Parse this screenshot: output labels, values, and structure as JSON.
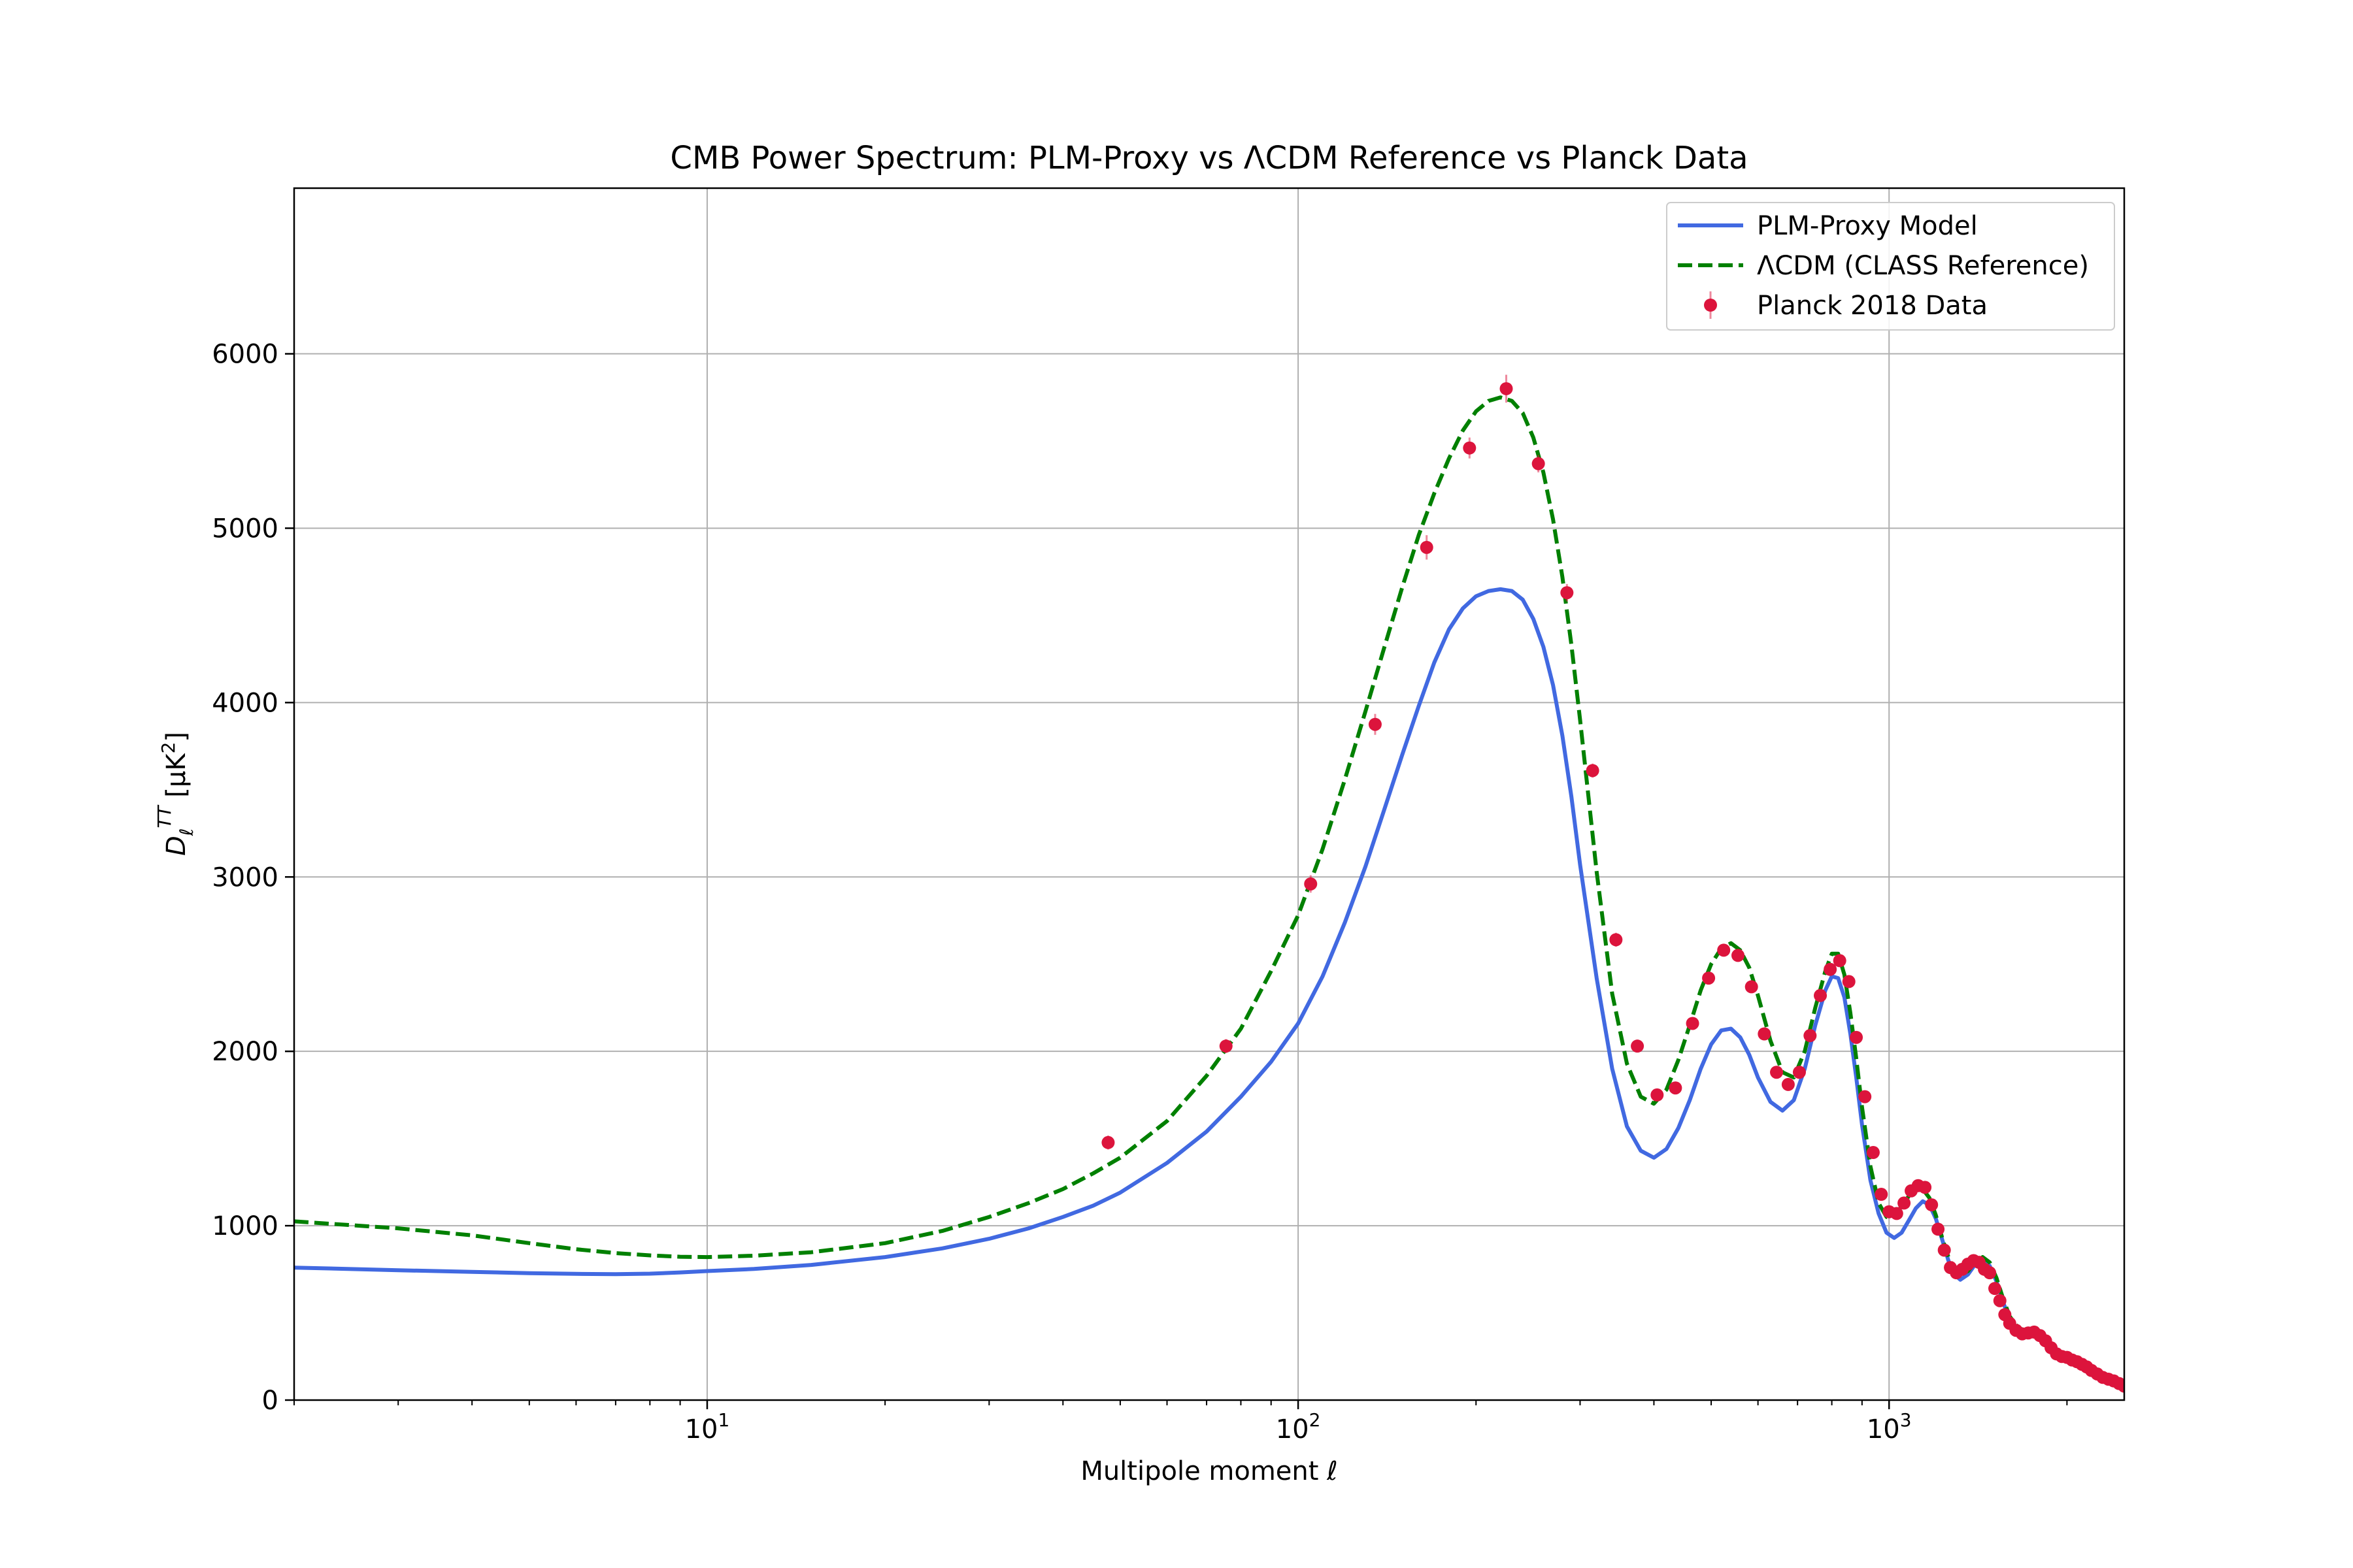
{
  "chart_data": {
    "type": "line",
    "title": "CMB Power Spectrum: PLM-Proxy vs ΛCDM Reference vs Planck Data",
    "xlabel": "Multipole moment ℓ",
    "ylabel": {
      "base": "D",
      "sub": "ℓ",
      "sup": "TT",
      "unit_pre": " [μK",
      "unit_sup": "2",
      "unit_post": "]"
    },
    "xscale": "log",
    "xlim": [
      2,
      2500
    ],
    "ylim": [
      0,
      6950
    ],
    "grid": true,
    "legend_position": "top-right",
    "x_ticks": [
      {
        "value": 10,
        "base": "10",
        "exp": "1"
      },
      {
        "value": 100,
        "base": "10",
        "exp": "2"
      },
      {
        "value": 1000,
        "base": "10",
        "exp": "3"
      }
    ],
    "y_ticks": [
      {
        "value": 0,
        "label": "0"
      },
      {
        "value": 1000,
        "label": "1000"
      },
      {
        "value": 2000,
        "label": "2000"
      },
      {
        "value": 3000,
        "label": "3000"
      },
      {
        "value": 4000,
        "label": "4000"
      },
      {
        "value": 5000,
        "label": "5000"
      },
      {
        "value": 6000,
        "label": "6000"
      }
    ],
    "series": [
      {
        "name": "PLM-Proxy Model",
        "kind": "line",
        "color": "#4169e1",
        "style": "solid",
        "points": [
          [
            2,
            760
          ],
          [
            3,
            745
          ],
          [
            4,
            735
          ],
          [
            5,
            728
          ],
          [
            6,
            724
          ],
          [
            7,
            722
          ],
          [
            8,
            725
          ],
          [
            9,
            732
          ],
          [
            10,
            740
          ],
          [
            12,
            752
          ],
          [
            15,
            775
          ],
          [
            20,
            820
          ],
          [
            25,
            870
          ],
          [
            30,
            925
          ],
          [
            35,
            985
          ],
          [
            40,
            1050
          ],
          [
            45,
            1115
          ],
          [
            50,
            1190
          ],
          [
            60,
            1360
          ],
          [
            70,
            1540
          ],
          [
            80,
            1740
          ],
          [
            90,
            1940
          ],
          [
            100,
            2160
          ],
          [
            110,
            2430
          ],
          [
            120,
            2740
          ],
          [
            130,
            3060
          ],
          [
            140,
            3390
          ],
          [
            150,
            3700
          ],
          [
            160,
            3980
          ],
          [
            170,
            4230
          ],
          [
            180,
            4420
          ],
          [
            190,
            4540
          ],
          [
            200,
            4610
          ],
          [
            210,
            4640
          ],
          [
            220,
            4650
          ],
          [
            230,
            4640
          ],
          [
            240,
            4590
          ],
          [
            250,
            4480
          ],
          [
            260,
            4320
          ],
          [
            270,
            4100
          ],
          [
            280,
            3810
          ],
          [
            290,
            3460
          ],
          [
            300,
            3070
          ],
          [
            320,
            2420
          ],
          [
            340,
            1900
          ],
          [
            360,
            1570
          ],
          [
            380,
            1430
          ],
          [
            400,
            1390
          ],
          [
            420,
            1440
          ],
          [
            440,
            1560
          ],
          [
            460,
            1720
          ],
          [
            480,
            1900
          ],
          [
            500,
            2040
          ],
          [
            520,
            2120
          ],
          [
            540,
            2130
          ],
          [
            560,
            2080
          ],
          [
            580,
            1980
          ],
          [
            600,
            1850
          ],
          [
            630,
            1710
          ],
          [
            660,
            1660
          ],
          [
            690,
            1720
          ],
          [
            720,
            1900
          ],
          [
            750,
            2150
          ],
          [
            780,
            2350
          ],
          [
            800,
            2430
          ],
          [
            820,
            2420
          ],
          [
            840,
            2310
          ],
          [
            860,
            2100
          ],
          [
            880,
            1850
          ],
          [
            900,
            1580
          ],
          [
            930,
            1260
          ],
          [
            960,
            1070
          ],
          [
            990,
            960
          ],
          [
            1020,
            930
          ],
          [
            1050,
            960
          ],
          [
            1080,
            1030
          ],
          [
            1110,
            1100
          ],
          [
            1140,
            1140
          ],
          [
            1170,
            1120
          ],
          [
            1200,
            1040
          ],
          [
            1230,
            920
          ],
          [
            1260,
            800
          ],
          [
            1290,
            720
          ],
          [
            1320,
            690
          ],
          [
            1360,
            720
          ],
          [
            1400,
            780
          ],
          [
            1440,
            810
          ],
          [
            1480,
            770
          ],
          [
            1520,
            680
          ],
          [
            1560,
            560
          ],
          [
            1600,
            460
          ],
          [
            1650,
            400
          ],
          [
            1700,
            380
          ],
          [
            1750,
            385
          ],
          [
            1800,
            370
          ],
          [
            1850,
            330
          ],
          [
            1900,
            280
          ],
          [
            2000,
            235
          ],
          [
            2100,
            210
          ],
          [
            2200,
            175
          ],
          [
            2300,
            130
          ],
          [
            2400,
            100
          ],
          [
            2500,
            75
          ]
        ]
      },
      {
        "name": "ΛCDM (CLASS Reference)",
        "kind": "line",
        "color": "#008000",
        "style": "dashed",
        "points": [
          [
            2,
            1025
          ],
          [
            3,
            985
          ],
          [
            4,
            945
          ],
          [
            5,
            900
          ],
          [
            6,
            865
          ],
          [
            7,
            843
          ],
          [
            8,
            830
          ],
          [
            9,
            822
          ],
          [
            10,
            820
          ],
          [
            12,
            828
          ],
          [
            15,
            848
          ],
          [
            20,
            900
          ],
          [
            25,
            970
          ],
          [
            30,
            1050
          ],
          [
            35,
            1130
          ],
          [
            40,
            1210
          ],
          [
            45,
            1300
          ],
          [
            50,
            1390
          ],
          [
            60,
            1600
          ],
          [
            70,
            1860
          ],
          [
            80,
            2130
          ],
          [
            90,
            2460
          ],
          [
            100,
            2780
          ],
          [
            110,
            3160
          ],
          [
            120,
            3560
          ],
          [
            130,
            3950
          ],
          [
            140,
            4320
          ],
          [
            150,
            4660
          ],
          [
            160,
            4960
          ],
          [
            170,
            5200
          ],
          [
            180,
            5400
          ],
          [
            190,
            5560
          ],
          [
            200,
            5670
          ],
          [
            210,
            5730
          ],
          [
            220,
            5750
          ],
          [
            230,
            5730
          ],
          [
            240,
            5660
          ],
          [
            250,
            5520
          ],
          [
            260,
            5320
          ],
          [
            270,
            5050
          ],
          [
            280,
            4720
          ],
          [
            290,
            4330
          ],
          [
            300,
            3900
          ],
          [
            320,
            3030
          ],
          [
            340,
            2330
          ],
          [
            360,
            1930
          ],
          [
            380,
            1740
          ],
          [
            400,
            1700
          ],
          [
            420,
            1780
          ],
          [
            440,
            1950
          ],
          [
            460,
            2150
          ],
          [
            480,
            2350
          ],
          [
            500,
            2500
          ],
          [
            520,
            2590
          ],
          [
            540,
            2620
          ],
          [
            560,
            2580
          ],
          [
            580,
            2480
          ],
          [
            600,
            2320
          ],
          [
            630,
            2060
          ],
          [
            660,
            1880
          ],
          [
            690,
            1850
          ],
          [
            720,
            2000
          ],
          [
            750,
            2250
          ],
          [
            780,
            2460
          ],
          [
            800,
            2560
          ],
          [
            820,
            2560
          ],
          [
            840,
            2440
          ],
          [
            860,
            2220
          ],
          [
            880,
            1960
          ],
          [
            900,
            1680
          ],
          [
            930,
            1340
          ],
          [
            960,
            1130
          ],
          [
            990,
            1050
          ],
          [
            1020,
            1060
          ],
          [
            1050,
            1110
          ],
          [
            1080,
            1170
          ],
          [
            1110,
            1210
          ],
          [
            1140,
            1210
          ],
          [
            1170,
            1160
          ],
          [
            1200,
            1060
          ],
          [
            1230,
            930
          ],
          [
            1260,
            820
          ],
          [
            1290,
            750
          ],
          [
            1320,
            720
          ],
          [
            1360,
            740
          ],
          [
            1400,
            790
          ],
          [
            1440,
            820
          ],
          [
            1480,
            790
          ],
          [
            1520,
            700
          ],
          [
            1560,
            580
          ],
          [
            1600,
            480
          ],
          [
            1650,
            420
          ],
          [
            1700,
            395
          ],
          [
            1750,
            395
          ],
          [
            1800,
            380
          ],
          [
            1850,
            340
          ],
          [
            1900,
            290
          ],
          [
            2000,
            240
          ],
          [
            2100,
            215
          ],
          [
            2200,
            180
          ],
          [
            2300,
            135
          ],
          [
            2400,
            105
          ],
          [
            2500,
            80
          ]
        ]
      },
      {
        "name": "Planck 2018 Data",
        "kind": "errorbar",
        "color": "#dc143c",
        "points": [
          [
            47.7,
            1477,
            40
          ],
          [
            75.5,
            2030,
            40
          ],
          [
            105,
            2960,
            50
          ],
          [
            135,
            3875,
            60
          ],
          [
            165,
            4890,
            70
          ],
          [
            195,
            5460,
            60
          ],
          [
            225,
            5800,
            80
          ],
          [
            255,
            5370,
            50
          ],
          [
            285,
            4630,
            50
          ],
          [
            315,
            3610,
            40
          ],
          [
            345,
            2640,
            40
          ],
          [
            375,
            2030,
            30
          ],
          [
            405,
            1750,
            30
          ],
          [
            435,
            1790,
            30
          ],
          [
            465,
            2160,
            30
          ],
          [
            495,
            2420,
            30
          ],
          [
            525,
            2580,
            30
          ],
          [
            555,
            2550,
            30
          ],
          [
            585,
            2370,
            30
          ],
          [
            615,
            2100,
            30
          ],
          [
            645,
            1880,
            30
          ],
          [
            675,
            1810,
            30
          ],
          [
            705,
            1880,
            30
          ],
          [
            735,
            2090,
            30
          ],
          [
            765,
            2320,
            30
          ],
          [
            795,
            2470,
            30
          ],
          [
            825,
            2520,
            30
          ],
          [
            855,
            2400,
            30
          ],
          [
            880,
            2080,
            30
          ],
          [
            910,
            1740,
            30
          ],
          [
            940,
            1420,
            30
          ],
          [
            970,
            1180,
            30
          ],
          [
            1000,
            1080,
            30
          ],
          [
            1030,
            1070,
            30
          ],
          [
            1060,
            1130,
            30
          ],
          [
            1090,
            1200,
            30
          ],
          [
            1120,
            1230,
            30
          ],
          [
            1150,
            1220,
            30
          ],
          [
            1180,
            1120,
            30
          ],
          [
            1210,
            980,
            30
          ],
          [
            1240,
            860,
            30
          ],
          [
            1270,
            760,
            30
          ],
          [
            1300,
            730,
            30
          ],
          [
            1330,
            750,
            30
          ],
          [
            1360,
            780,
            30
          ],
          [
            1390,
            800,
            30
          ],
          [
            1420,
            790,
            30
          ],
          [
            1450,
            750,
            30
          ],
          [
            1480,
            730,
            30
          ],
          [
            1510,
            640,
            30
          ],
          [
            1540,
            570,
            30
          ],
          [
            1570,
            490,
            30
          ],
          [
            1600,
            440,
            30
          ],
          [
            1640,
            400,
            30
          ],
          [
            1680,
            380,
            30
          ],
          [
            1720,
            385,
            30
          ],
          [
            1760,
            390,
            30
          ],
          [
            1800,
            370,
            30
          ],
          [
            1840,
            340,
            30
          ],
          [
            1880,
            300,
            30
          ],
          [
            1920,
            265,
            30
          ],
          [
            1960,
            250,
            30
          ],
          [
            2000,
            245,
            30
          ],
          [
            2040,
            230,
            30
          ],
          [
            2080,
            220,
            30
          ],
          [
            2120,
            205,
            30
          ],
          [
            2160,
            190,
            30
          ],
          [
            2200,
            170,
            30
          ],
          [
            2250,
            150,
            30
          ],
          [
            2300,
            130,
            30
          ],
          [
            2350,
            120,
            30
          ],
          [
            2400,
            110,
            30
          ],
          [
            2450,
            95,
            30
          ],
          [
            2500,
            80,
            30
          ]
        ]
      }
    ]
  }
}
